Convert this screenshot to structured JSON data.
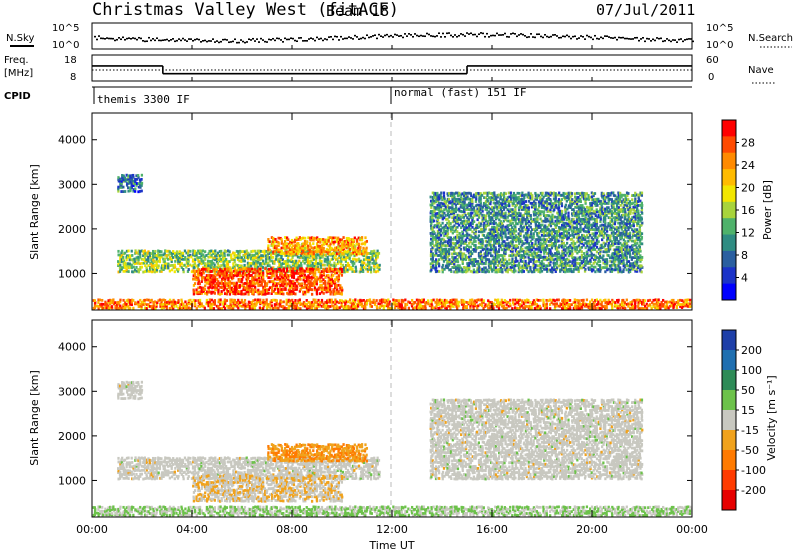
{
  "header": {
    "title": "Christmas Valley West (fitACF)",
    "beam": "Beam 18",
    "date": "07/Jul/2011"
  },
  "summary": {
    "nsky_label": "N.Sky",
    "nsky_top": "10^5",
    "nsky_bottom": "10^0",
    "nsearch_label": "N.Search",
    "nsearch_top": "10^5",
    "nsearch_bottom": "10^0",
    "freq_label": "Freq.",
    "freq_unit": "[MHz]",
    "freq_top": "18",
    "freq_bottom": "8",
    "nave_label": "Nave",
    "nave_top": "60",
    "nave_bottom": "0",
    "cpid_label": "CPID",
    "cpid_mode1": "themis 3300 IF",
    "cpid_mode2": "normal (fast) 151 IF"
  },
  "panels": {
    "ylabel": "Slant Range [km]",
    "yticks": [
      "4000",
      "3000",
      "2000",
      "1000"
    ],
    "xlabel": "Time UT",
    "xticks": [
      "00:00",
      "04:00",
      "08:00",
      "12:00",
      "16:00",
      "20:00",
      "00:00"
    ]
  },
  "power_scale": {
    "label": "Power [dB]",
    "ticks": [
      "28",
      "24",
      "20",
      "16",
      "12",
      "8",
      "4"
    ],
    "colors": [
      "#ff0000",
      "#ff4a00",
      "#ff8a00",
      "#ffbb00",
      "#f2e600",
      "#a8d43c",
      "#4fb26b",
      "#2f8c82",
      "#2a5fa0",
      "#1b33c8",
      "#0000ff"
    ]
  },
  "velocity_scale": {
    "label": "Velocity [m s⁻¹]",
    "ticks": [
      "200",
      "100",
      "50",
      "15",
      "-15",
      "-50",
      "-100",
      "-200"
    ],
    "colors": [
      "#1e3fa8",
      "#1f6fb0",
      "#2e8b57",
      "#6cc24a",
      "#c8c8c0",
      "#f0a21c",
      "#ff7a00",
      "#ff3b00",
      "#e60000"
    ]
  },
  "chart_data": {
    "type": "heatmap",
    "title": "Christmas Valley West (fitACF)",
    "xlabel": "Time UT",
    "ylabel": "Slant Range [km]",
    "xlim": [
      "00:00",
      "24:00"
    ],
    "ylim": [
      180,
      4600
    ],
    "power_range_db": [
      0,
      30
    ],
    "velocity_range_ms": [
      -250,
      250
    ],
    "frequency_mhz": [
      {
        "from": "00:00",
        "to": "02:50",
        "value": 13.8
      },
      {
        "from": "02:50",
        "to": "15:00",
        "value": 10.8
      },
      {
        "from": "15:00",
        "to": "24:00",
        "value": 13.8
      }
    ],
    "cpid_modes": [
      {
        "name": "themis 3300 IF",
        "from": "00:00",
        "to": "12:00"
      },
      {
        "name": "normal (fast) 151 IF",
        "from": "12:00",
        "to": "24:00"
      }
    ],
    "echo_regions": [
      {
        "time": [
          "01:00",
          "02:00"
        ],
        "range_km": [
          2800,
          3200
        ],
        "power_db": 8,
        "velocity_ms": 0
      },
      {
        "time": [
          "01:00",
          "11:30"
        ],
        "range_km": [
          1000,
          1500
        ],
        "power_db": 14,
        "velocity_ms": 0
      },
      {
        "time": [
          "04:00",
          "10:00"
        ],
        "range_km": [
          500,
          1100
        ],
        "power_db": 26,
        "velocity_ms": -20
      },
      {
        "time": [
          "07:00",
          "11:00"
        ],
        "range_km": [
          1400,
          1800
        ],
        "power_db": 22,
        "velocity_ms": -80
      },
      {
        "time": [
          "13:30",
          "22:00"
        ],
        "range_km": [
          1000,
          2800
        ],
        "power_db": 10,
        "velocity_ms": 0
      },
      {
        "time": [
          "00:00",
          "24:00"
        ],
        "range_km": [
          180,
          400
        ],
        "power_db": 24,
        "velocity_ms": 30
      }
    ]
  }
}
